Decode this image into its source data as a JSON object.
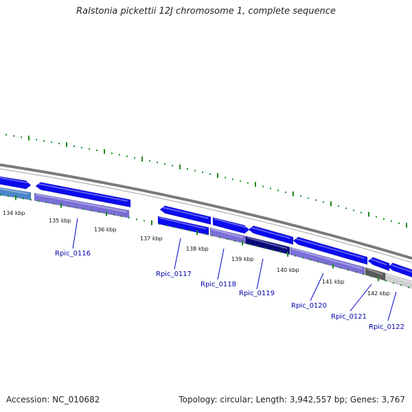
{
  "title": "Ralstonia pickettii 12J chromosome 1, complete sequence",
  "footer": {
    "accession": "Accession: NC_010682",
    "summary": "Topology: circular; Length: 3,942,557 bp; Genes: 3,767"
  },
  "colors": {
    "backbone": "#7a7a7a",
    "tick": "#1a8a1a",
    "gene_blue": "#0a0aee",
    "gene_purple": "#7a6fd6",
    "gene_dark": "#0a0a7a",
    "gene_gray": "#5a5a5a",
    "gene_lightgray": "#cfcfcf",
    "gene_teal": "#4a86c8",
    "label_line": "#0000cc"
  },
  "ticks": [
    {
      "label": "134 kbp"
    },
    {
      "label": "135 kbp"
    },
    {
      "label": "136 kbp"
    },
    {
      "label": "137 kbp"
    },
    {
      "label": "138 kbp"
    },
    {
      "label": "139 kbp"
    },
    {
      "label": "140 kbp"
    },
    {
      "label": "141 kbp"
    },
    {
      "label": "142 kbp"
    }
  ],
  "genes": [
    {
      "label": "Rpic_0116"
    },
    {
      "label": "Rpic_0117"
    },
    {
      "label": "Rpic_0118"
    },
    {
      "label": "Rpic_0119"
    },
    {
      "label": "Rpic_0120"
    },
    {
      "label": "Rpic_0121"
    },
    {
      "label": "Rpic_0122"
    }
  ]
}
